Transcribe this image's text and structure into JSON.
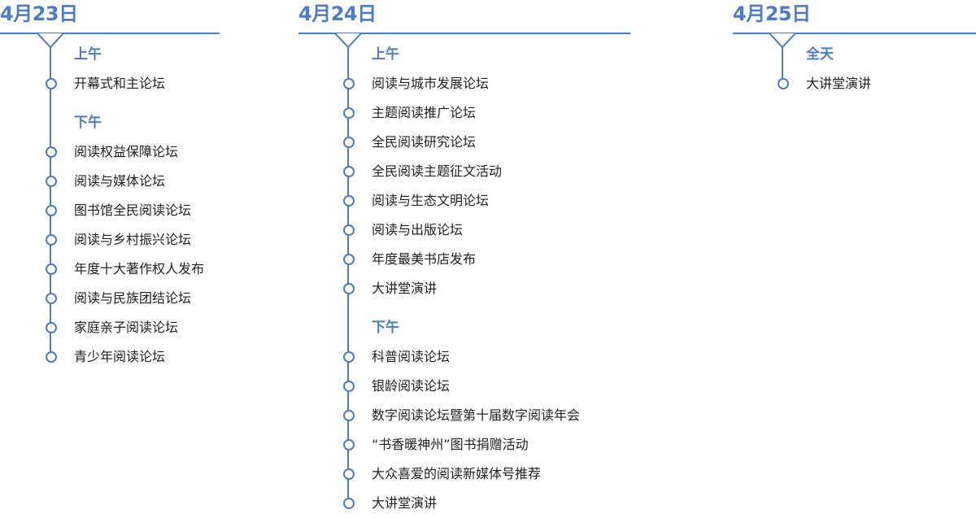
{
  "accent_color": "#4a7cc7",
  "days": [
    {
      "date": "4月23日",
      "sections": [
        {
          "label": "上午",
          "items": [
            "开幕式和主论坛"
          ]
        },
        {
          "label": "下午",
          "items": [
            "阅读权益保障论坛",
            "阅读与媒体论坛",
            "图书馆全民阅读论坛",
            "阅读与乡村振兴论坛",
            "年度十大著作权人发布",
            "阅读与民族团结论坛",
            "家庭亲子阅读论坛",
            "青少年阅读论坛"
          ]
        }
      ]
    },
    {
      "date": "4月24日",
      "sections": [
        {
          "label": "上午",
          "items": [
            "阅读与城市发展论坛",
            "主题阅读推广论坛",
            "全民阅读研究论坛",
            "全民阅读主题征文活动",
            "阅读与生态文明论坛",
            "阅读与出版论坛",
            "年度最美书店发布",
            "大讲堂演讲"
          ]
        },
        {
          "label": "下午",
          "items": [
            "科普阅读论坛",
            "银龄阅读论坛",
            "数字阅读论坛暨第十届数字阅读年会",
            "“书香暖神州”图书捐赠活动",
            "大众喜爱的阅读新媒体号推荐",
            "大讲堂演讲"
          ]
        }
      ]
    },
    {
      "date": "4月25日",
      "sections": [
        {
          "label": "全天",
          "items": [
            "大讲堂演讲"
          ]
        }
      ]
    }
  ]
}
